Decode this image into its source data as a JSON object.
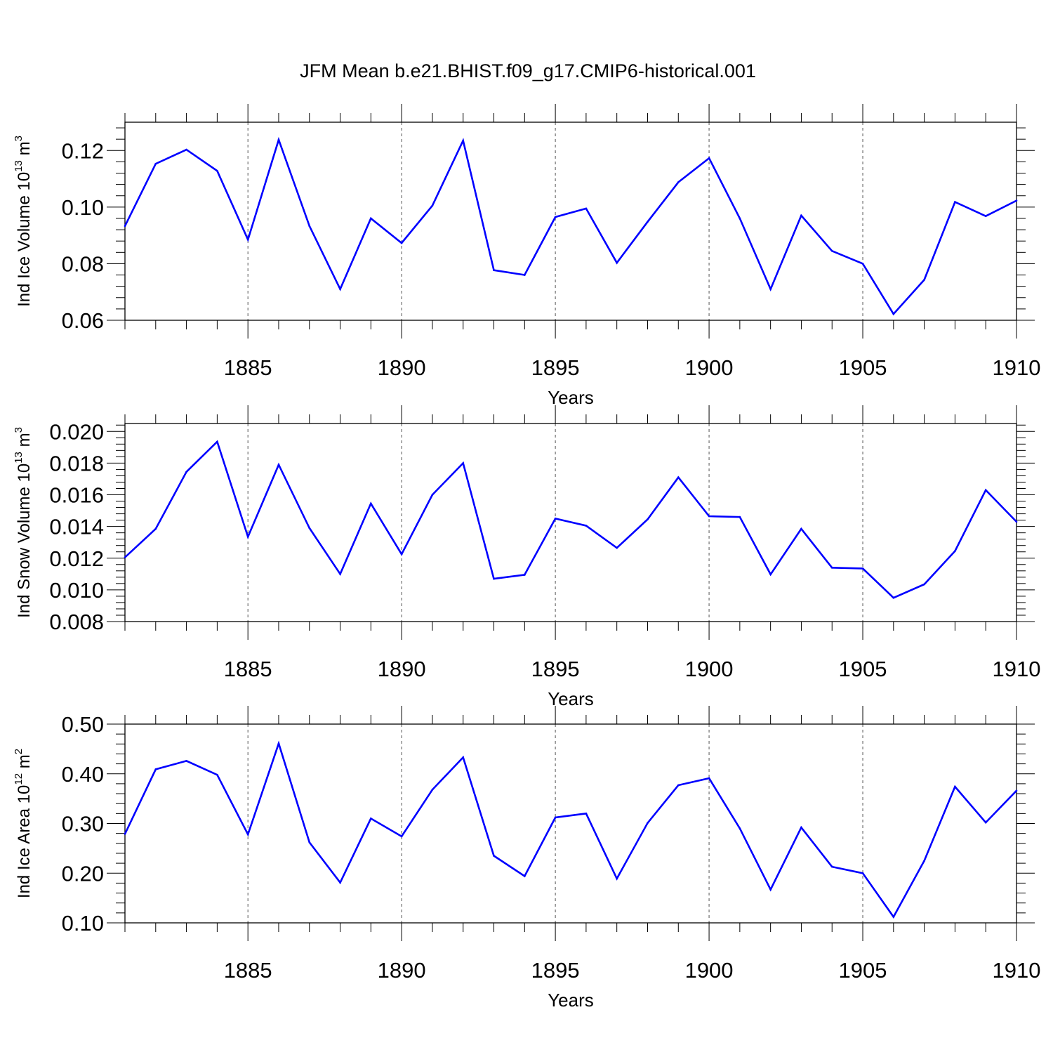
{
  "title": "JFM Mean b.e21.BHIST.f09_g17.CMIP6-historical.001",
  "colors": {
    "line": "#0000ff",
    "axis": "#000000",
    "grid": "#555555"
  },
  "chart_data": [
    {
      "type": "line",
      "ylabel": "Ind Ice Volume 10",
      "ylabel_exp": "13",
      "ylabel_unit": " m",
      "ylabel_unit_exp": "3",
      "xlabel": "Years",
      "xlim": [
        1881,
        1910
      ],
      "ylim": [
        0.06,
        0.13
      ],
      "xticks": [
        "1885",
        "1890",
        "1895",
        "1900",
        "1905",
        "1910"
      ],
      "yticks": [
        "0.06",
        "0.08",
        "0.10",
        "0.12"
      ],
      "grid": "vertical dashed at major x ticks",
      "x": [
        1881,
        1882,
        1883,
        1884,
        1885,
        1886,
        1887,
        1888,
        1889,
        1890,
        1891,
        1892,
        1893,
        1894,
        1895,
        1896,
        1897,
        1898,
        1899,
        1900,
        1901,
        1902,
        1903,
        1904,
        1905,
        1906,
        1907,
        1908,
        1909,
        1910
      ],
      "values": [
        0.0933,
        0.1153,
        0.1203,
        0.1128,
        0.0885,
        0.1238,
        0.0933,
        0.071,
        0.096,
        0.0873,
        0.1005,
        0.1235,
        0.0777,
        0.076,
        0.0965,
        0.0995,
        0.0803,
        0.0948,
        0.1088,
        0.1173,
        0.096,
        0.071,
        0.097,
        0.0845,
        0.08,
        0.0622,
        0.0743,
        0.1018,
        0.0968,
        0.1023
      ]
    },
    {
      "type": "line",
      "ylabel": "Ind Snow Volume 10",
      "ylabel_exp": "13",
      "ylabel_unit": " m",
      "ylabel_unit_exp": "3",
      "xlabel": "Years",
      "xlim": [
        1881,
        1910
      ],
      "ylim": [
        0.008,
        0.0205
      ],
      "xticks": [
        "1885",
        "1890",
        "1895",
        "1900",
        "1905",
        "1910"
      ],
      "yticks": [
        "0.008",
        "0.010",
        "0.012",
        "0.014",
        "0.016",
        "0.018",
        "0.020"
      ],
      "grid": "vertical dashed at major x ticks",
      "x": [
        1881,
        1882,
        1883,
        1884,
        1885,
        1886,
        1887,
        1888,
        1889,
        1890,
        1891,
        1892,
        1893,
        1894,
        1895,
        1896,
        1897,
        1898,
        1899,
        1900,
        1901,
        1902,
        1903,
        1904,
        1905,
        1906,
        1907,
        1908,
        1909,
        1910
      ],
      "values": [
        0.01205,
        0.01385,
        0.01745,
        0.01935,
        0.01335,
        0.0179,
        0.0139,
        0.011,
        0.01545,
        0.01225,
        0.016,
        0.018,
        0.0107,
        0.01095,
        0.0145,
        0.01405,
        0.01265,
        0.01445,
        0.0171,
        0.01465,
        0.0146,
        0.01098,
        0.01385,
        0.0114,
        0.01135,
        0.0095,
        0.01035,
        0.01245,
        0.0163,
        0.0143
      ]
    },
    {
      "type": "line",
      "ylabel": "Ind Ice Area 10",
      "ylabel_exp": "12",
      "ylabel_unit": " m",
      "ylabel_unit_exp": "2",
      "xlabel": "Years",
      "xlim": [
        1881,
        1910
      ],
      "ylim": [
        0.1,
        0.5
      ],
      "xticks": [
        "1885",
        "1890",
        "1895",
        "1900",
        "1905",
        "1910"
      ],
      "yticks": [
        "0.10",
        "0.20",
        "0.30",
        "0.40",
        "0.50"
      ],
      "grid": "vertical dashed at major x ticks",
      "x": [
        1881,
        1882,
        1883,
        1884,
        1885,
        1886,
        1887,
        1888,
        1889,
        1890,
        1891,
        1892,
        1893,
        1894,
        1895,
        1896,
        1897,
        1898,
        1899,
        1900,
        1901,
        1902,
        1903,
        1904,
        1905,
        1906,
        1907,
        1908,
        1909,
        1910
      ],
      "values": [
        0.279,
        0.409,
        0.426,
        0.398,
        0.278,
        0.461,
        0.262,
        0.181,
        0.31,
        0.274,
        0.368,
        0.433,
        0.235,
        0.194,
        0.312,
        0.32,
        0.189,
        0.301,
        0.377,
        0.391,
        0.29,
        0.167,
        0.292,
        0.213,
        0.2,
        0.112,
        0.225,
        0.374,
        0.302,
        0.366
      ]
    }
  ]
}
